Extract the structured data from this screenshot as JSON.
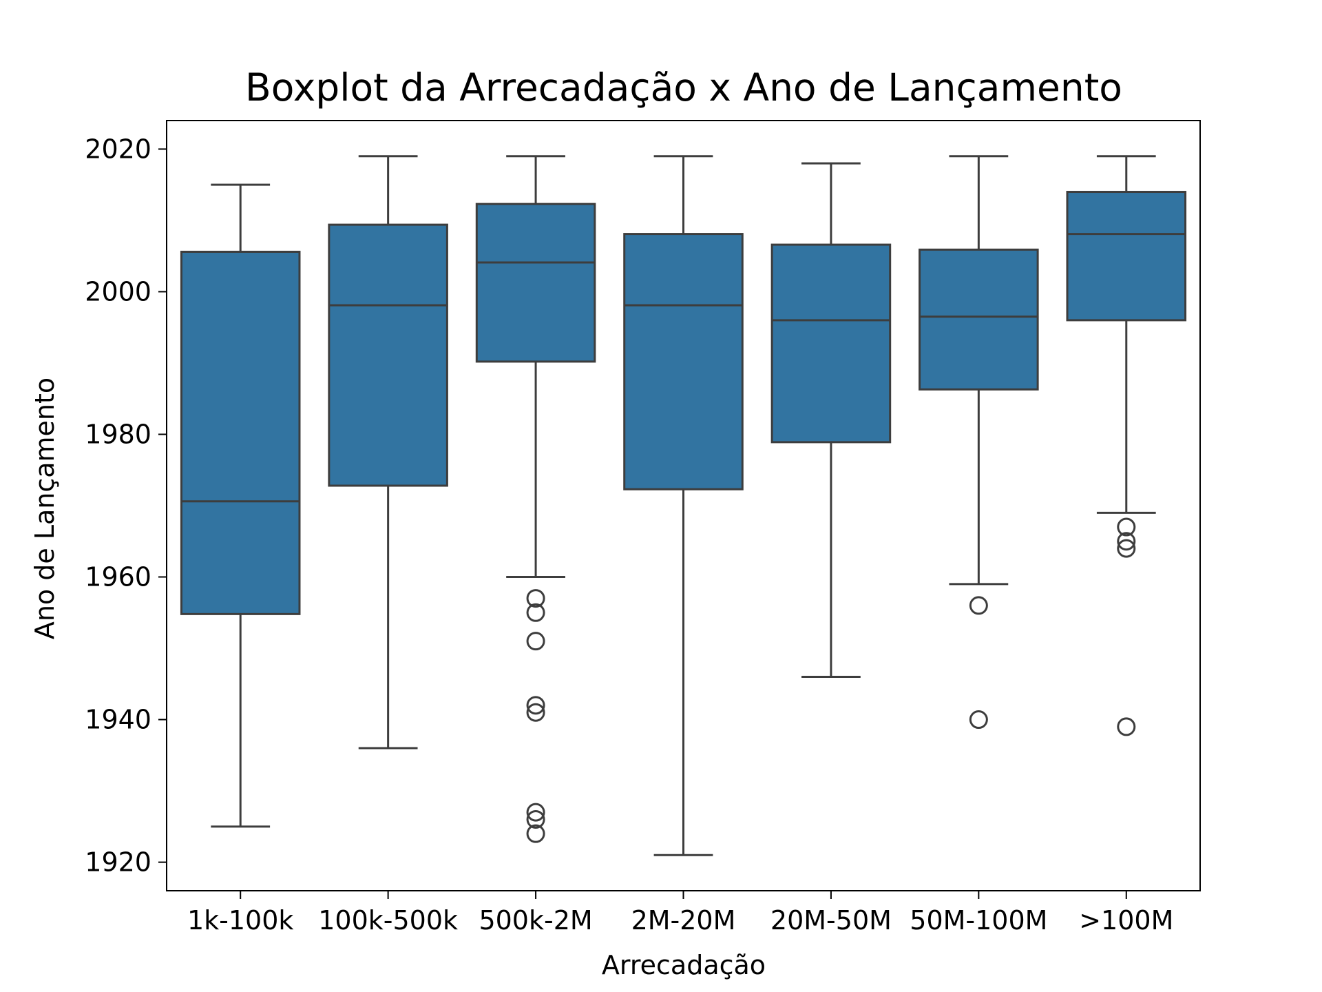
{
  "chart_data": {
    "type": "boxplot",
    "title": "Boxplot da Arrecadação x Ano de Lançamento",
    "xlabel": "Arrecadação",
    "ylabel": "Ano de Lançamento",
    "ylim": [
      1916,
      2024
    ],
    "yticks": [
      1920,
      1940,
      1960,
      1980,
      2000,
      2020
    ],
    "grid": false,
    "box_color": "#3274a1",
    "line_color": "#3d3d3d",
    "categories": [
      "1k-100k",
      "100k-500k",
      "500k-2M",
      "2M-20M",
      "20M-50M",
      "50M-100M",
      ">100M"
    ],
    "boxes": [
      {
        "category": "1k-100k",
        "whisker_low": 1925,
        "q1": 1954.8,
        "median": 1970.6,
        "q3": 2005.6,
        "whisker_high": 2015,
        "outliers": []
      },
      {
        "category": "100k-500k",
        "whisker_low": 1936,
        "q1": 1972.8,
        "median": 1998.1,
        "q3": 2009.4,
        "whisker_high": 2019,
        "outliers": []
      },
      {
        "category": "500k-2M",
        "whisker_low": 1960,
        "q1": 1990.2,
        "median": 2004.1,
        "q3": 2012.3,
        "whisker_high": 2019,
        "outliers": [
          1957,
          1955,
          1951,
          1942,
          1941,
          1927,
          1926,
          1924
        ]
      },
      {
        "category": "2M-20M",
        "whisker_low": 1921,
        "q1": 1972.3,
        "median": 1998.1,
        "q3": 2008.1,
        "whisker_high": 2019,
        "outliers": []
      },
      {
        "category": "20M-50M",
        "whisker_low": 1946,
        "q1": 1978.9,
        "median": 1996.0,
        "q3": 2006.6,
        "whisker_high": 2018,
        "outliers": []
      },
      {
        "category": "50M-100M",
        "whisker_low": 1959,
        "q1": 1986.3,
        "median": 1996.5,
        "q3": 2005.9,
        "whisker_high": 2019,
        "outliers": [
          1956,
          1940
        ]
      },
      {
        "category": ">100M",
        "whisker_low": 1969,
        "q1": 1996.0,
        "median": 2008.1,
        "q3": 2014.0,
        "whisker_high": 2019,
        "outliers": [
          1967,
          1965,
          1964,
          1939
        ]
      }
    ]
  }
}
